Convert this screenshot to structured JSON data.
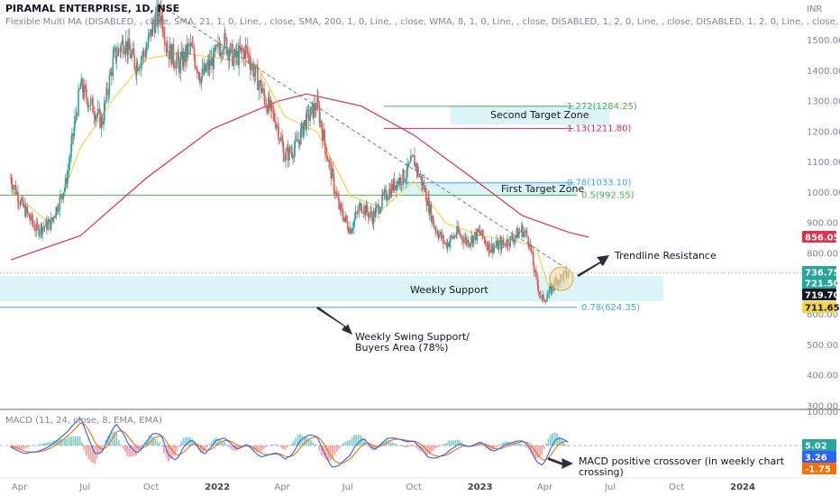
{
  "header": {
    "title": "PIRAMAL ENTERPRISE, 1D, NSE",
    "indicator": "Flexible Multi MA (DISABLED, , close, SMA, 21, 1, 0, Line, , close, SMA, 200, 1, 0, Line, , close, WMA, 8, 1, 0, Line, , close, DISABLED, 1, 2, 0, Line, , close, DISABLED, 1, 2, 0, Line, , close, DISABLED, 1, 2, 0, Lin",
    "currency": "INR"
  },
  "colors": {
    "candle_up": "#26a69a",
    "candle_down": "#ef5350",
    "ma_fast": "#f5d547",
    "ma_slow": "#e0314a",
    "support_zone": "#d7f3f7",
    "target_zone": "#d7f3f7",
    "trendline": "#787b86",
    "macd_line": "#2962ff",
    "signal_line": "#ff6d00",
    "fib_green": "#4caf50",
    "fib_red": "#e91e63",
    "fib_blue": "#42a5f5"
  },
  "chart_data": [
    {
      "type": "candlestick",
      "title": "PIRAMAL ENTERPRISE, 1D, NSE",
      "x_ticks": [
        "Apr",
        "Jul",
        "Oct",
        "2022",
        "Apr",
        "Jul",
        "Oct",
        "2023",
        "Apr",
        "Jul",
        "Oct",
        "2024"
      ],
      "x_ticks_bold": [
        "2022",
        "2023",
        "2024"
      ],
      "y_ticks": [
        1500,
        1400,
        1300,
        1200,
        1100,
        1000,
        900,
        800,
        700,
        600,
        500,
        400,
        300
      ],
      "y_tick_labels": [
        "1500.00",
        "1400.00",
        "1300.00",
        "1200.00",
        "1100.00",
        "1000.00",
        "900.00",
        "800.00",
        "700.00",
        "600.00",
        "500.00",
        "400.00",
        "300.00"
      ],
      "ylim": [
        280,
        1620
      ],
      "grid": false,
      "price_path": [
        [
          "2021-03-20",
          1050
        ],
        [
          "2021-04-05",
          960
        ],
        [
          "2021-04-25",
          880
        ],
        [
          "2021-05-15",
          900
        ],
        [
          "2021-06-05",
          1030
        ],
        [
          "2021-06-25",
          1350
        ],
        [
          "2021-07-10",
          1290
        ],
        [
          "2021-07-25",
          1230
        ],
        [
          "2021-08-10",
          1440
        ],
        [
          "2021-08-25",
          1500
        ],
        [
          "2021-09-10",
          1420
        ],
        [
          "2021-09-25",
          1470
        ],
        [
          "2021-10-05",
          1560
        ],
        [
          "2021-10-15",
          1590
        ],
        [
          "2021-10-25",
          1470
        ],
        [
          "2021-11-10",
          1420
        ],
        [
          "2021-11-25",
          1480
        ],
        [
          "2021-12-10",
          1380
        ],
        [
          "2021-12-25",
          1430
        ],
        [
          "2022-01-10",
          1500
        ],
        [
          "2022-01-25",
          1440
        ],
        [
          "2022-02-10",
          1470
        ],
        [
          "2022-02-25",
          1380
        ],
        [
          "2022-03-10",
          1300
        ],
        [
          "2022-03-25",
          1230
        ],
        [
          "2022-04-05",
          1120
        ],
        [
          "2022-04-20",
          1150
        ],
        [
          "2022-05-05",
          1240
        ],
        [
          "2022-05-20",
          1290
        ],
        [
          "2022-06-05",
          1100
        ],
        [
          "2022-06-20",
          950
        ],
        [
          "2022-07-05",
          880
        ],
        [
          "2022-07-20",
          960
        ],
        [
          "2022-08-05",
          920
        ],
        [
          "2022-08-20",
          980
        ],
        [
          "2022-09-05",
          1030
        ],
        [
          "2022-09-20",
          1060
        ],
        [
          "2022-10-01",
          1110
        ],
        [
          "2022-10-15",
          1020
        ],
        [
          "2022-10-30",
          890
        ],
        [
          "2022-11-15",
          830
        ],
        [
          "2022-12-01",
          870
        ],
        [
          "2022-12-15",
          840
        ],
        [
          "2023-01-01",
          870
        ],
        [
          "2023-01-15",
          820
        ],
        [
          "2023-02-01",
          830
        ],
        [
          "2023-02-15",
          850
        ],
        [
          "2023-03-01",
          880
        ],
        [
          "2023-03-10",
          850
        ],
        [
          "2023-03-20",
          720
        ],
        [
          "2023-03-28",
          650
        ],
        [
          "2023-04-05",
          660
        ],
        [
          "2023-04-15",
          705
        ],
        [
          "2023-04-25",
          725
        ],
        [
          "2023-05-05",
          735
        ]
      ],
      "ma_fast_path": [
        [
          "2021-03-20",
          1010
        ],
        [
          "2021-05-15",
          895
        ],
        [
          "2021-06-25",
          1150
        ],
        [
          "2021-08-10",
          1310
        ],
        [
          "2021-09-25",
          1440
        ],
        [
          "2021-11-10",
          1460
        ],
        [
          "2022-01-10",
          1440
        ],
        [
          "2022-02-25",
          1420
        ],
        [
          "2022-04-05",
          1250
        ],
        [
          "2022-05-20",
          1200
        ],
        [
          "2022-07-05",
          990
        ],
        [
          "2022-08-20",
          950
        ],
        [
          "2022-10-01",
          1040
        ],
        [
          "2022-11-15",
          900
        ],
        [
          "2023-01-01",
          860
        ],
        [
          "2023-02-15",
          845
        ],
        [
          "2023-03-20",
          820
        ],
        [
          "2023-04-05",
          700
        ],
        [
          "2023-05-05",
          725
        ]
      ],
      "ma_slow_path": [
        [
          "2021-03-20",
          780
        ],
        [
          "2021-06-25",
          860
        ],
        [
          "2021-09-25",
          1050
        ],
        [
          "2021-12-25",
          1210
        ],
        [
          "2022-03-25",
          1300
        ],
        [
          "2022-05-05",
          1325
        ],
        [
          "2022-07-20",
          1285
        ],
        [
          "2022-10-01",
          1190
        ],
        [
          "2022-12-15",
          1060
        ],
        [
          "2023-03-01",
          925
        ],
        [
          "2023-05-05",
          870
        ],
        [
          "2023-06-01",
          855
        ]
      ],
      "trendline": [
        [
          "2021-10-15",
          1615
        ],
        [
          "2023-05-05",
          745
        ]
      ],
      "price_levels": [
        {
          "label": "1.272(1284.25)",
          "value": 1284.25,
          "color": "#4caf50"
        },
        {
          "label": "1.13(1211.80)",
          "value": 1211.8,
          "color": "#e91e63"
        },
        {
          "label": "0.78(1033.10)",
          "value": 1033.1,
          "color": "#42a5f5"
        },
        {
          "label": "0.5(992.55)",
          "value": 992.55,
          "color": "#4caf50"
        },
        {
          "label": "0.78(624.35)",
          "value": 624.35,
          "color": "#42a5f5"
        }
      ],
      "zones": [
        {
          "label": "Second Target Zone",
          "from": 1224,
          "to": 1288
        },
        {
          "label": "First Target Zone",
          "from": 989,
          "to": 1036
        },
        {
          "label": "Weekly Support",
          "from": 644,
          "to": 727
        }
      ],
      "annotations": [
        {
          "text": "Trendline Resistance"
        },
        {
          "text": "Weekly Swing Support/"
        },
        {
          "text": "Buyers Area (78%)"
        }
      ],
      "price_badges": [
        {
          "value": "856.05",
          "bg": "#e0314a"
        },
        {
          "value": "736.75",
          "bg": "#26a69a"
        },
        {
          "value": "721.50",
          "bg": "#26a69a"
        },
        {
          "value": "719.70",
          "bg": "#131722"
        },
        {
          "value": "711.65",
          "bg": "#f5d547"
        }
      ]
    },
    {
      "type": "line",
      "title": "MACD (11, 24, close, 8, EMA, EMA)",
      "y_ticks": [
        100
      ],
      "y_tick_labels": [
        "100.00"
      ],
      "series": [
        {
          "name": "MACD",
          "color": "#2962ff"
        },
        {
          "name": "Signal",
          "color": "#ff6d00"
        }
      ],
      "annotations": [
        {
          "text": "MACD positive crossover (in weekly chart"
        },
        {
          "text": "crossing)"
        }
      ],
      "value_badges": [
        {
          "value": "5.02",
          "bg": "#26a69a"
        },
        {
          "value": "3.26",
          "bg": "#2962ff"
        },
        {
          "value": "-1.75",
          "bg": "#ff6d00"
        }
      ]
    }
  ]
}
